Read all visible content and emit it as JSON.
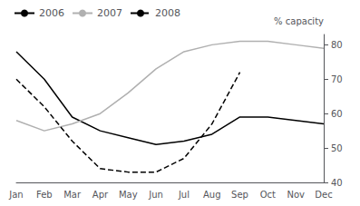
{
  "chart_data": {
    "type": "line",
    "ylabel": "% capacity",
    "categories": [
      "Jan",
      "Feb",
      "Mar",
      "Apr",
      "May",
      "Jun",
      "Jul",
      "Aug",
      "Sep",
      "Oct",
      "Nov",
      "Dec"
    ],
    "series": [
      {
        "name": "2006",
        "color": "#000000",
        "line_style": "solid",
        "values": [
          78,
          70,
          59,
          55,
          53,
          51,
          52,
          54,
          59,
          59,
          58,
          57
        ]
      },
      {
        "name": "2007",
        "color": "#b0b0b0",
        "line_style": "solid",
        "values": [
          58,
          55,
          57,
          60,
          66,
          73,
          78,
          80,
          81,
          81,
          80,
          79
        ]
      },
      {
        "name": "2008",
        "color": "#000000",
        "line_style": "dashed",
        "values": [
          70,
          62,
          52,
          44,
          43,
          43,
          47,
          57,
          72,
          null,
          null,
          null
        ]
      }
    ],
    "ylim": [
      40,
      83
    ],
    "yticks": [
      40,
      50,
      60,
      70,
      80
    ],
    "grid": false,
    "legend": "upper left"
  }
}
